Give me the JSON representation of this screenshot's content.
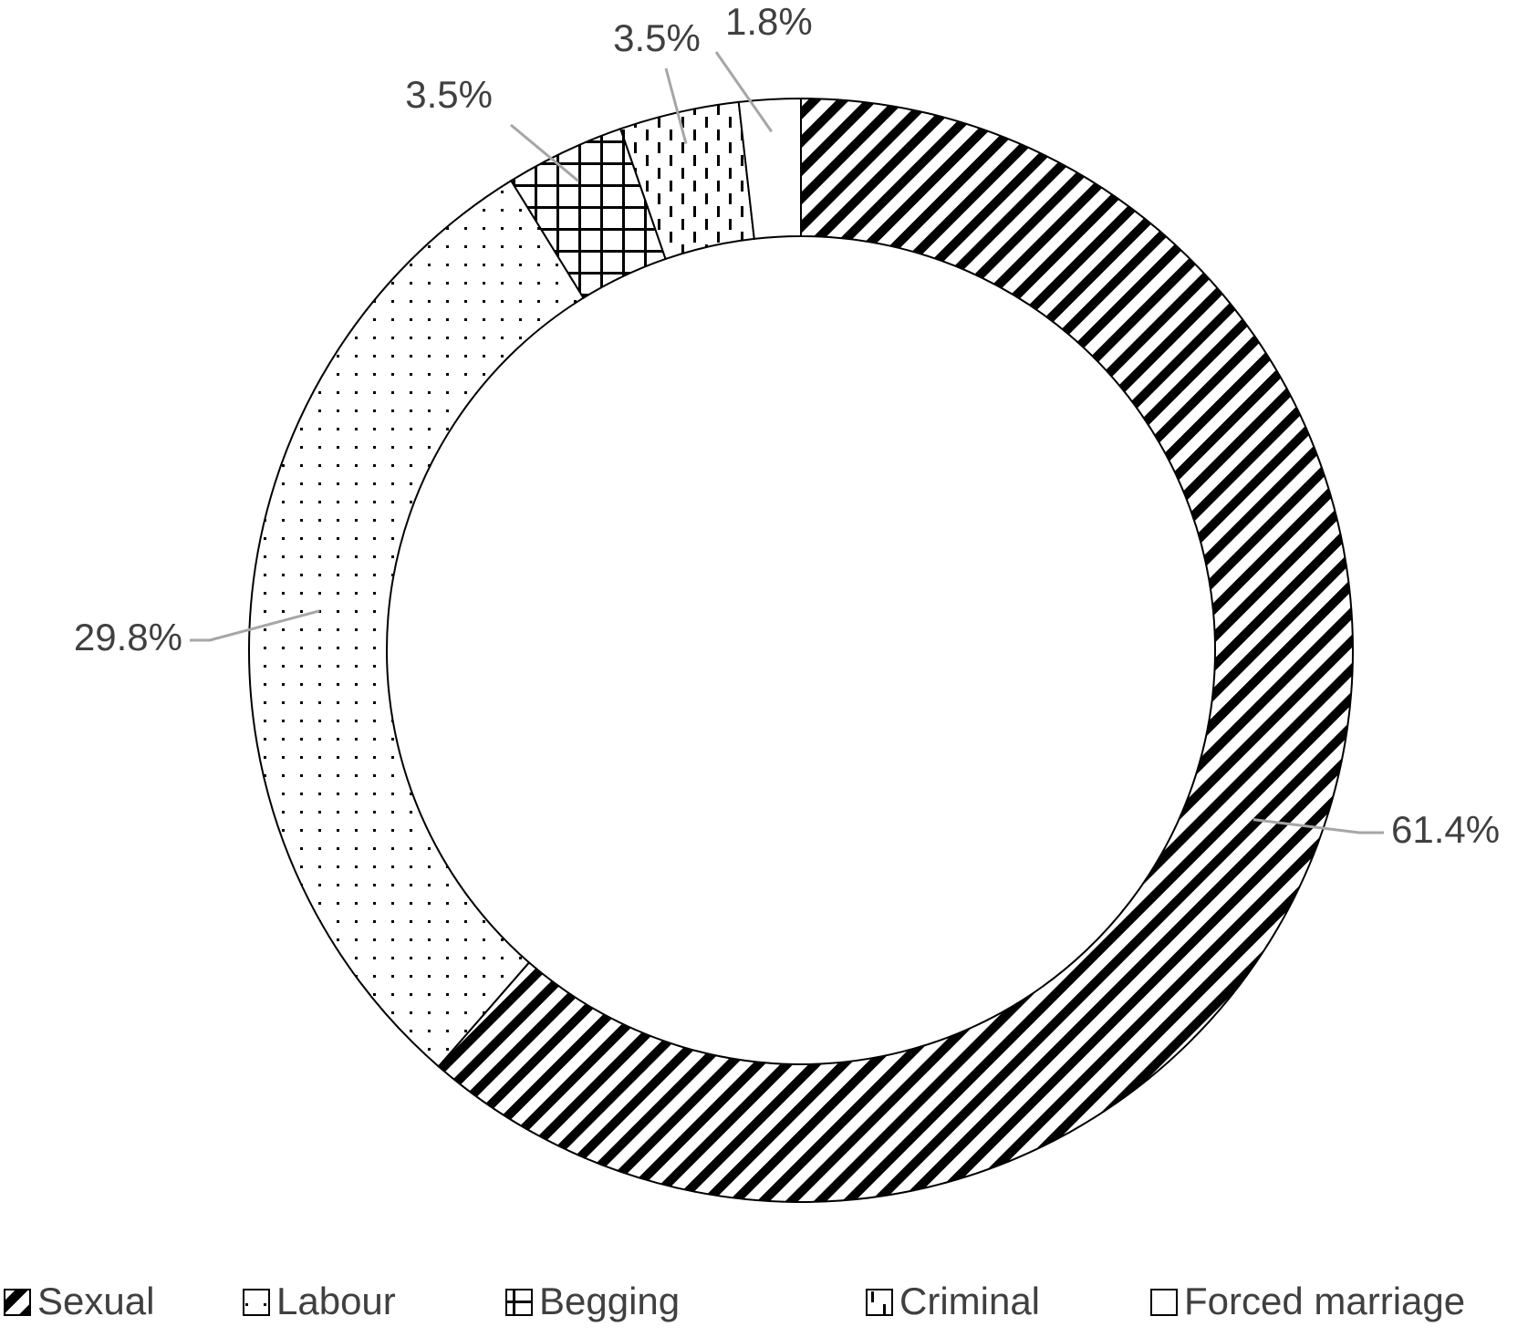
{
  "chart_data": {
    "type": "donut",
    "categories": [
      "Sexual",
      "Labour",
      "Begging",
      "Criminal",
      "Forced marriage"
    ],
    "values": [
      61.4,
      29.8,
      3.5,
      3.5,
      1.8
    ],
    "value_labels": [
      "61.4%",
      "29.8%",
      "3.5%",
      "3.5%",
      "1.8%"
    ],
    "patterns": [
      "diagonal",
      "dots",
      "crosshatch",
      "dashes",
      "none"
    ],
    "legend": "bottom"
  }
}
